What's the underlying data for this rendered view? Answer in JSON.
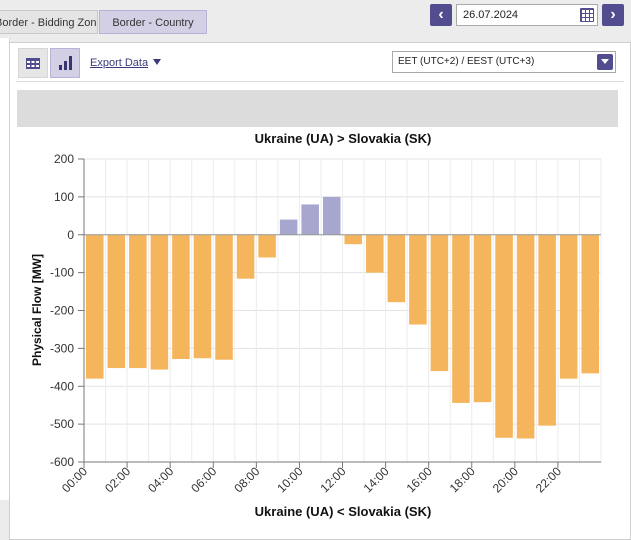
{
  "tabs": [
    {
      "label": "Border - Bidding Zone"
    },
    {
      "label": "Border - Country"
    }
  ],
  "date": {
    "value": "26.07.2024"
  },
  "toolbar": {
    "export_label": "Export Data"
  },
  "timezone": {
    "selected": "EET (UTC+2) / EEST (UTC+3)"
  },
  "colors": {
    "negative": "#f5b55c",
    "positive": "#a7a6cf",
    "accent": "#514d8e"
  },
  "icons": [
    "chevron-left-icon",
    "chevron-right-icon",
    "calendar-icon",
    "table-view-icon",
    "bar-chart-icon",
    "caret-down-icon"
  ],
  "chart_data": {
    "type": "bar",
    "title": "Ukraine (UA) > Slovakia (SK)",
    "bottom_title": "Ukraine (UA) < Slovakia (SK)",
    "ylabel": "Physical Flow [MW]",
    "ylim": [
      -600,
      200
    ],
    "yticks": [
      200,
      100,
      0,
      -100,
      -200,
      -300,
      -400,
      -500,
      -600
    ],
    "grid": true,
    "categories": [
      "00:00",
      "01:00",
      "02:00",
      "03:00",
      "04:00",
      "05:00",
      "06:00",
      "07:00",
      "08:00",
      "09:00",
      "10:00",
      "11:00",
      "12:00",
      "13:00",
      "14:00",
      "15:00",
      "16:00",
      "17:00",
      "18:00",
      "19:00",
      "20:00",
      "21:00",
      "22:00",
      "23:00"
    ],
    "xtick_labels": [
      "00:00",
      "02:00",
      "04:00",
      "06:00",
      "08:00",
      "10:00",
      "12:00",
      "14:00",
      "16:00",
      "18:00",
      "20:00",
      "22:00"
    ],
    "values": [
      -380,
      -352,
      -352,
      -356,
      -328,
      -326,
      -330,
      -116,
      -60,
      40,
      80,
      100,
      -25,
      -100,
      -178,
      -237,
      -360,
      -444,
      -442,
      -536,
      -538,
      -504,
      -380,
      -366
    ]
  }
}
